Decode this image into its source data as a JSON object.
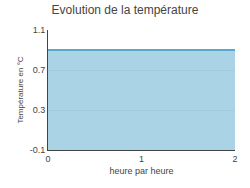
{
  "chart_data": {
    "type": "area",
    "title": "Evolution de la température",
    "xlabel": "heure par heure",
    "ylabel": "Température en °C",
    "x": [
      0,
      2
    ],
    "values": [
      0.9,
      0.9
    ],
    "color": "#55aacc",
    "xlim": [
      0,
      2
    ],
    "ylim": [
      -0.1,
      1.1
    ],
    "xticks": [
      0,
      1,
      2
    ],
    "yticks": [
      -0.1,
      0.3,
      0.7,
      1.1
    ],
    "grid": "y"
  }
}
